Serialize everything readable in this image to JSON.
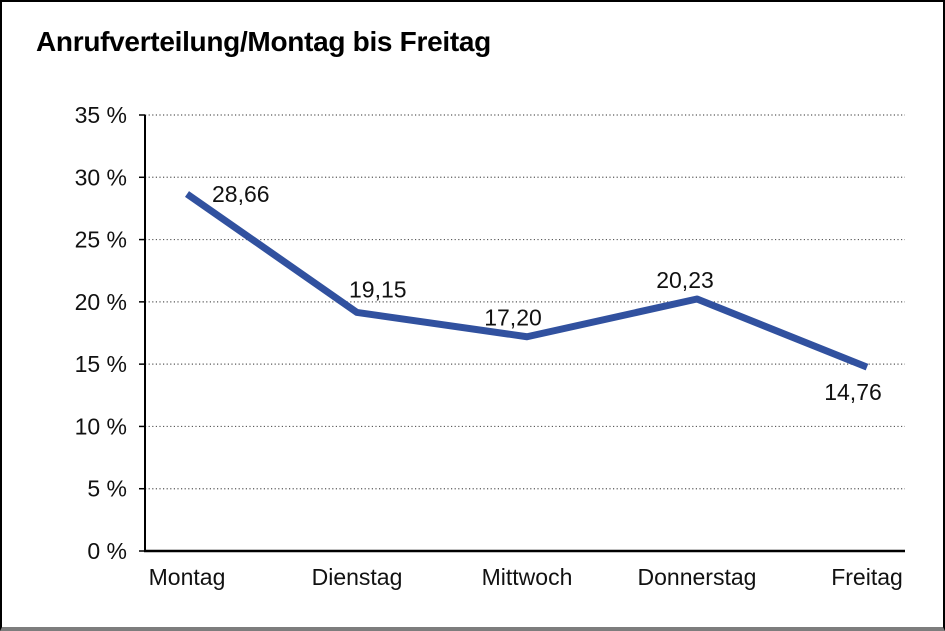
{
  "chart_data": {
    "type": "line",
    "title": "Anrufverteilung/Montag bis Freitag",
    "categories": [
      "Montag",
      "Dienstag",
      "Mittwoch",
      "Donnerstag",
      "Freitag"
    ],
    "values": [
      28.66,
      19.15,
      17.2,
      20.23,
      14.76
    ],
    "data_labels": [
      "28,66",
      "19,15",
      "17,20",
      "20,23",
      "14,76"
    ],
    "xlabel": "",
    "ylabel": "",
    "ylim": [
      0,
      35
    ],
    "ytick_step": 5,
    "ytick_labels": [
      "0 %",
      "5 %",
      "10 %",
      "15 %",
      "20 %",
      "25 %",
      "30 %",
      "35 %"
    ],
    "grid": "horizontal-dotted",
    "legend": "none",
    "line_color": "#31519f",
    "axis_color": "#000000",
    "gridline_color": "#5a5a5a",
    "frame_bottom_color": "#7d7d7d"
  }
}
